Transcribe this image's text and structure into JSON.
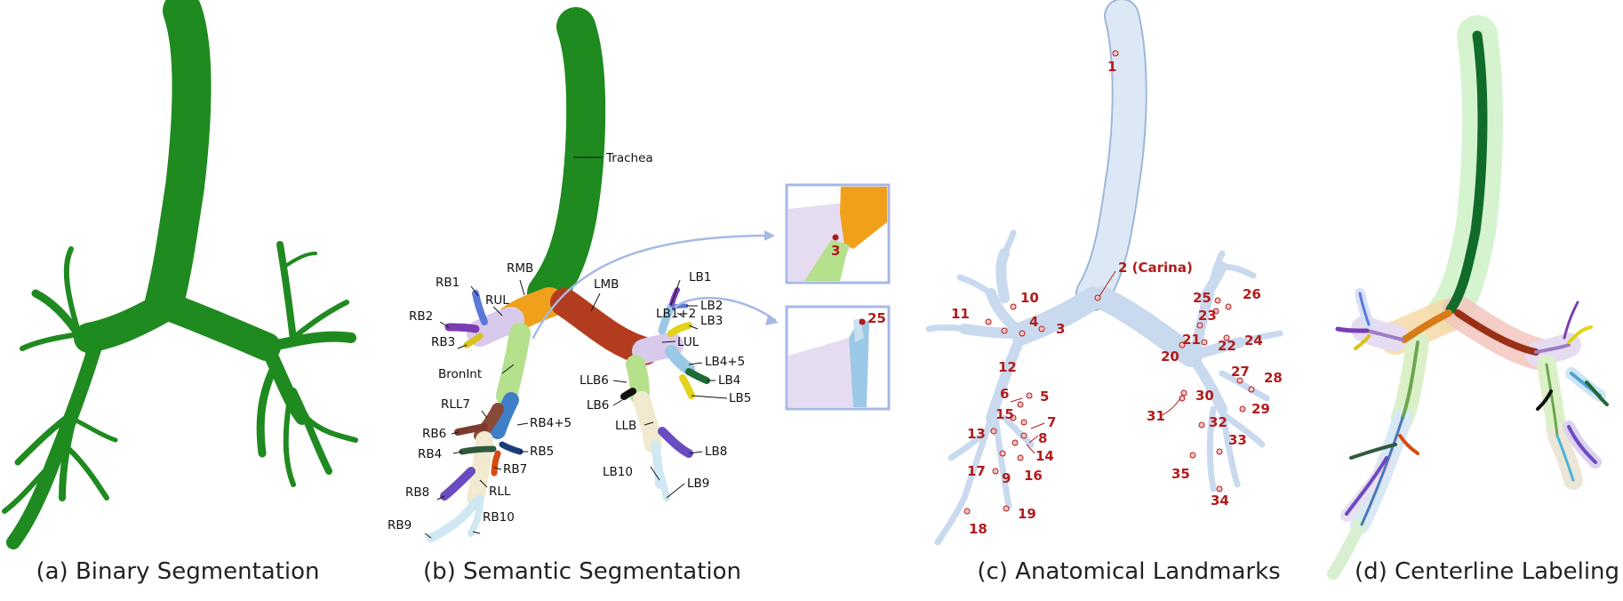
{
  "captions": {
    "a": "(a) Binary Segmentation",
    "b": "(b) Semantic Segmentation",
    "c": "(c) Anatomical Landmarks",
    "d": "(d) Centerline Labeling"
  },
  "colors": {
    "airway_green": "#1f8a1f",
    "trachea_dark": "#116b2a",
    "rmb_orange": "#f0a01a",
    "lmb_red": "#b33c1e",
    "lavender": "#d9c9ec",
    "light_green": "#b5e08c",
    "light_blue": "#9bc8e6",
    "landmark_red": "#b31b1b",
    "inset_border": "#a6b8e6",
    "airway_ice": "#dce8f5"
  },
  "semantic_labels": {
    "trachea": "Trachea",
    "rmb": "RMB",
    "lmb": "LMB",
    "rul": "RUL",
    "lul": "LUL",
    "bronint": "BronInt",
    "rll": "RLL",
    "rll7": "RLL7",
    "llb": "LLB",
    "llb6": "LLB6",
    "rb1": "RB1",
    "rb2": "RB2",
    "rb3": "RB3",
    "rb4": "RB4",
    "rb4_5": "RB4+5",
    "rb5": "RB5",
    "rb6": "RB6",
    "rb7": "RB7",
    "rb8": "RB8",
    "rb9": "RB9",
    "rb10": "RB10",
    "lb1": "LB1",
    "lb1_2": "LB1+2",
    "lb2": "LB2",
    "lb3": "LB3",
    "lb4": "LB4",
    "lb4_5": "LB4+5",
    "lb5": "LB5",
    "lb6": "LB6",
    "lb8": "LB8",
    "lb9": "LB9",
    "lb10": "LB10"
  },
  "insets": {
    "top_number": "3",
    "bottom_number": "25"
  },
  "landmarks": {
    "n1": "1",
    "n2": "2 (Carina)",
    "n3": "3",
    "n4": "4",
    "n5": "5",
    "n6": "6",
    "n7": "7",
    "n8": "8",
    "n9": "9",
    "n10": "10",
    "n11": "11",
    "n12": "12",
    "n13": "13",
    "n14": "14",
    "n15": "15",
    "n16": "16",
    "n17": "17",
    "n18": "18",
    "n19": "19",
    "n20": "20",
    "n21": "21",
    "n22": "22",
    "n23": "23",
    "n24": "24",
    "n25": "25",
    "n26": "26",
    "n27": "27",
    "n28": "28",
    "n29": "29",
    "n30": "30",
    "n31": "31",
    "n32": "32",
    "n33": "33",
    "n34": "34",
    "n35": "35"
  }
}
